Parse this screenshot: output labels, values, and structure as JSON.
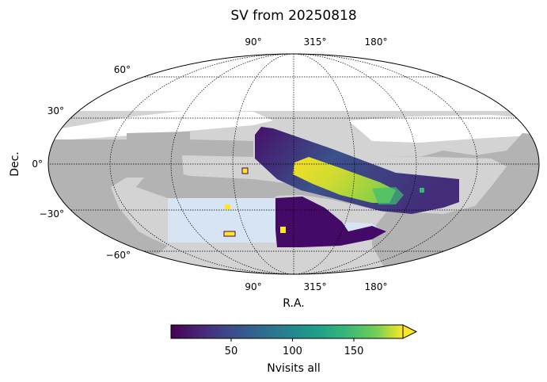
{
  "chart_data": {
    "type": "heatmap",
    "title": "SV from 20250818",
    "projection": "mollweide",
    "xlabel": "R.A.",
    "ylabel": "Dec.",
    "ra_ticks_top": [
      "90°",
      "315°",
      "180°"
    ],
    "ra_ticks_bottom": [
      "90°",
      "315°",
      "180°"
    ],
    "dec_ticks": [
      {
        "dec": 60,
        "label": "60°"
      },
      {
        "dec": 30,
        "label": "30°"
      },
      {
        "dec": 0,
        "label": "0°"
      },
      {
        "dec": -30,
        "label": "−30°"
      },
      {
        "dec": -60,
        "label": "−60°"
      }
    ],
    "grid": true,
    "colorbar": {
      "label": "Nvisits all",
      "orientation": "horizontal",
      "placement": "bottom",
      "colormap": "viridis",
      "range": [
        1,
        190
      ],
      "extend": "max",
      "ticks": [
        {
          "value": 50,
          "label": "50"
        },
        {
          "value": 100,
          "label": "100"
        },
        {
          "value": 150,
          "label": "150"
        }
      ]
    },
    "background_regions": [
      {
        "name": "footprint-light",
        "color": "#d3d3d3"
      },
      {
        "name": "footprint-dark",
        "color": "#b3b3b3"
      },
      {
        "name": "footprint-blue",
        "color": "#d6e4f4"
      }
    ],
    "data_regions": [
      {
        "name": "galactic-plane-band",
        "nvisits_range": [
          5,
          40
        ]
      },
      {
        "name": "high-coverage-core",
        "nvisits_range": [
          140,
          190
        ]
      },
      {
        "name": "southern-patch",
        "nvisits_range": [
          5,
          20
        ]
      },
      {
        "name": "deep-drilling-fields",
        "nvisits_range": [
          150,
          190
        ]
      }
    ]
  }
}
